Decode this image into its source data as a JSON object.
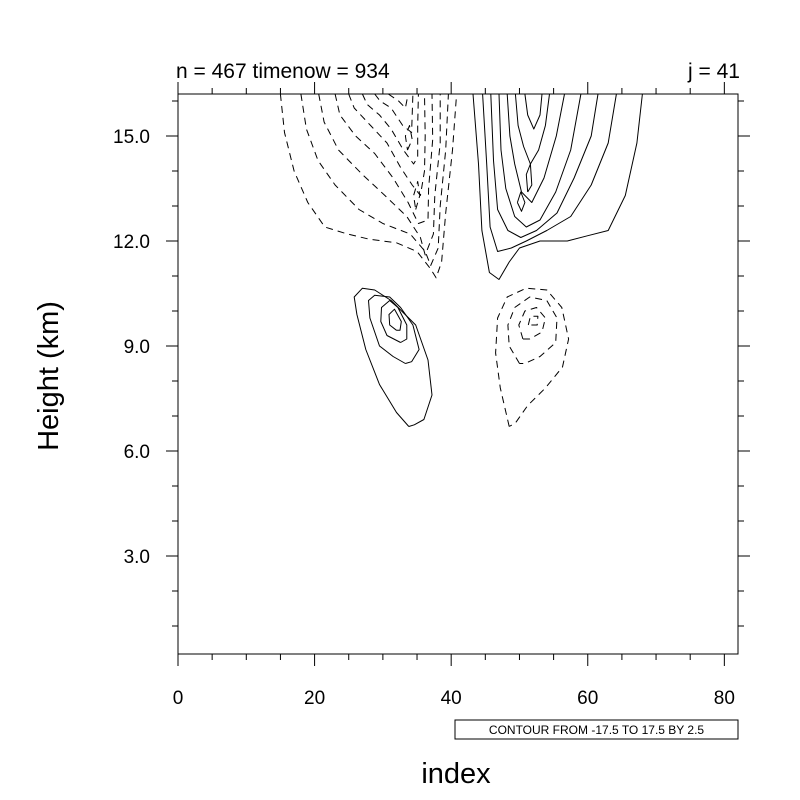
{
  "chart_data": {
    "type": "contour",
    "title_left": "n = 467 timenow = 934",
    "title_right": "j = 41",
    "xlabel": "index",
    "ylabel": "Height (km)",
    "xlim": [
      0,
      82
    ],
    "ylim": [
      0.2,
      16.2
    ],
    "x_ticks": [
      0,
      20,
      40,
      60,
      80
    ],
    "x_tick_labels": [
      "0",
      "20",
      "40",
      "60",
      "80"
    ],
    "y_ticks": [
      3,
      6,
      9,
      12,
      15
    ],
    "y_tick_labels": [
      "3.0",
      "6.0",
      "9.0",
      "12.0",
      "15.0"
    ],
    "info_label": "CONTOUR FROM -17.5 TO 17.5 BY 2.5",
    "contour_levels": {
      "min": -17.5,
      "max": 17.5,
      "step": 2.5
    },
    "line_styles": {
      "negative": "dashed",
      "positive": "solid"
    },
    "line_color": "#000000",
    "features": [
      {
        "kind": "upper-left-cells",
        "sign": "negative",
        "x_range": [
          15,
          41
        ],
        "y_range": [
          10.9,
          16.2
        ]
      },
      {
        "kind": "upper-right-cells",
        "sign": "positive",
        "x_range": [
          43,
          68
        ],
        "y_range": [
          10.9,
          16.2
        ]
      },
      {
        "kind": "lower-left-lobe",
        "sign": "positive",
        "x_range": [
          25.5,
          37
        ],
        "y_range": [
          6.7,
          10.7
        ]
      },
      {
        "kind": "lower-right-lobe",
        "sign": "negative",
        "x_range": [
          46.5,
          57
        ],
        "y_range": [
          6.7,
          10.7
        ]
      }
    ]
  }
}
